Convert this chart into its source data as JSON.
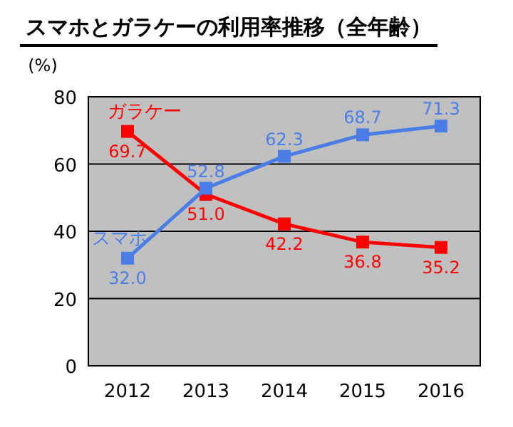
{
  "chart_data": {
    "type": "line",
    "title": "スマホとガラケーの利用率推移（全年齢）",
    "ylabel": "(%)",
    "categories": [
      "2012",
      "2013",
      "2014",
      "2015",
      "2016"
    ],
    "series": [
      {
        "name": "ガラケー",
        "color": "#ff0000",
        "values": [
          69.7,
          51.0,
          42.2,
          36.8,
          35.2
        ],
        "value_labels": [
          "69.7",
          "51.0",
          "42.2",
          "36.8",
          "35.2"
        ]
      },
      {
        "name": "スマホ",
        "color": "#4a7ee6",
        "values": [
          32.0,
          52.8,
          62.3,
          68.7,
          71.3
        ],
        "value_labels": [
          "32.0",
          "52.8",
          "62.3",
          "68.7",
          "71.3"
        ]
      }
    ],
    "ylim": [
      0,
      80
    ],
    "yticks": [
      0,
      20,
      40,
      60,
      80
    ],
    "grid": "y",
    "marker": "square",
    "line_style": "solid"
  }
}
